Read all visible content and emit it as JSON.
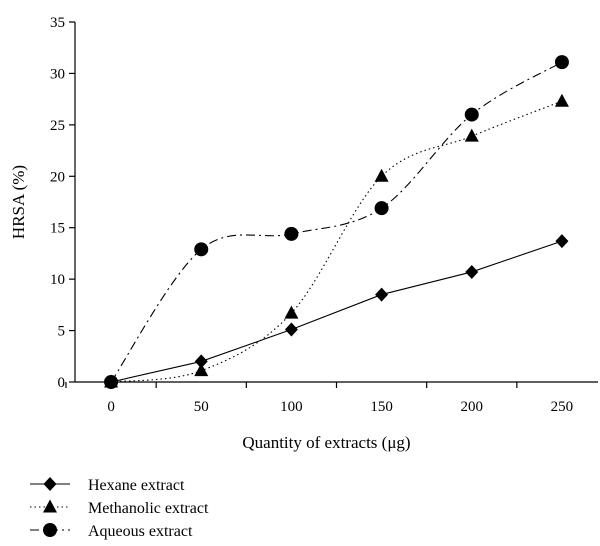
{
  "chart_data": {
    "type": "line",
    "title": "",
    "xlabel": "Quantity of extracts (μg)",
    "ylabel": "HRSA (%)",
    "x": [
      0,
      50,
      100,
      150,
      200,
      250
    ],
    "xlim": [
      -20,
      270
    ],
    "ylim": [
      0,
      35
    ],
    "xticks": [
      0,
      50,
      100,
      150,
      200,
      250
    ],
    "yticks": [
      0,
      5,
      10,
      15,
      20,
      25,
      30,
      35
    ],
    "grid": false,
    "legend_position": "bottom-left",
    "series": [
      {
        "name": "Hexane extract",
        "values": [
          0,
          2,
          5.1,
          8.5,
          10.7,
          13.7
        ],
        "marker": "diamond",
        "line_style": "solid",
        "smooth": false,
        "color": "#000000"
      },
      {
        "name": "Methanolic extract",
        "values": [
          0,
          1.1,
          6.7,
          20,
          23.9,
          27.3
        ],
        "marker": "triangle",
        "line_style": "dotted",
        "smooth": true,
        "color": "#000000"
      },
      {
        "name": "Aqueous extract",
        "values": [
          0,
          12.9,
          14.4,
          16.9,
          26,
          31.1
        ],
        "marker": "circle",
        "line_style": "dash-dot",
        "smooth": true,
        "color": "#000000"
      }
    ]
  }
}
